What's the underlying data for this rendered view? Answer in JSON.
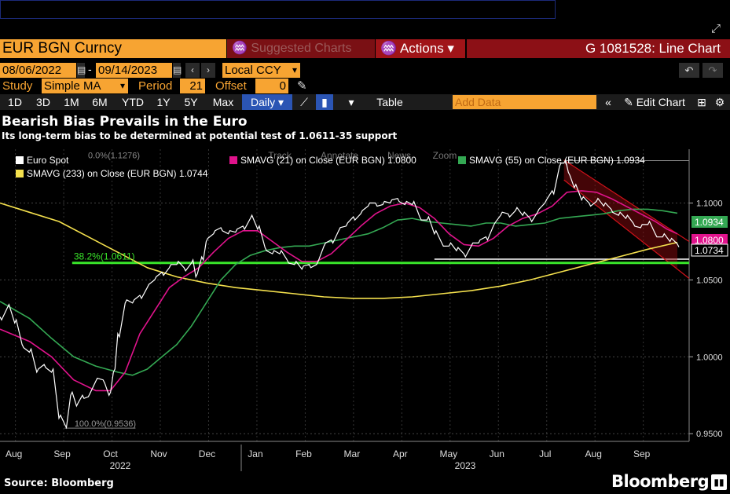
{
  "header": {
    "ticker": "EUR BGN Curncy",
    "suggested": "Suggested Charts",
    "actions": "Actions",
    "chart_id": "G 1081528: Line Chart"
  },
  "controls": {
    "start_date": "08/06/2022",
    "end_date": "09/14/2023",
    "currency": "Local CCY",
    "study_label": "Study",
    "study_value": "Simple MA",
    "period_label": "Period",
    "period_value": "21",
    "offset_label": "Offset",
    "offset_value": "0"
  },
  "toolbar": {
    "ranges": [
      "1D",
      "3D",
      "1M",
      "6M",
      "YTD",
      "1Y",
      "5Y",
      "Max"
    ],
    "frequency": "Daily",
    "table": "Table",
    "add_data": "Add Data",
    "edit_chart": "Edit Chart"
  },
  "headline": {
    "title": "Bearish Bias Prevails in the Euro",
    "subtitle": "Its long-term bias to be determined at potential test of 1.0611-35 support"
  },
  "footer": {
    "source": "Source: Bloomberg",
    "brand": "Bloomberg"
  },
  "chart_menu": [
    "Track",
    "Annotate",
    "News",
    "Zoom"
  ],
  "colors": {
    "spot": "#ffffff",
    "sma21": "#e0138c",
    "sma55": "#34a853",
    "sma233": "#f4e04d",
    "support": "#39e62a",
    "channel": "#d0121a",
    "ticker_bg": "#f7a432"
  },
  "chart_data": {
    "type": "line",
    "ylim": [
      0.945,
      1.135
    ],
    "yticks": [
      0.95,
      1.0,
      1.05,
      1.1
    ],
    "ytick_labels": [
      "0.9500",
      "1.0000",
      "1.0500",
      "1.1000"
    ],
    "x_months": [
      "Aug",
      "Sep",
      "Oct",
      "Nov",
      "Dec",
      "Jan",
      "Feb",
      "Mar",
      "Apr",
      "May",
      "Jun",
      "Jul",
      "Aug",
      "Sep"
    ],
    "x_years": [
      "2022",
      "2023"
    ],
    "legend": [
      {
        "label": "Euro Spot",
        "color": "#ffffff"
      },
      {
        "label": "SMAVG (21) on Close (EUR BGN) 1.0800",
        "color": "#e0138c"
      },
      {
        "label": "SMAVG (55) on Close (EUR BGN) 1.0934",
        "color": "#34a853"
      },
      {
        "label": "SMAVG (233) on Close (EUR BGN) 1.0744",
        "color": "#f4e04d"
      }
    ],
    "last_values": [
      {
        "label": "1.0934",
        "value": 1.0934,
        "color": "#34a853"
      },
      {
        "label": "1.0800",
        "value": 1.08,
        "color": "#e0138c"
      },
      {
        "label": "1.0734",
        "value": 1.0734,
        "color": "#ffffff"
      }
    ],
    "annotations": [
      {
        "label": "0.0%(1.1276)",
        "value": 1.1276
      },
      {
        "label": "38.2%(1.0611)",
        "value": 1.0611
      },
      {
        "label": "100.0%(0.9536)",
        "value": 0.9536
      }
    ],
    "spot_points": [
      [
        0.0,
        1.026
      ],
      [
        0.5,
        1.032
      ],
      [
        1.0,
        1.022
      ],
      [
        1.5,
        1.008
      ],
      [
        2.0,
        1.003
      ],
      [
        2.5,
        0.99
      ],
      [
        3.0,
        0.995
      ],
      [
        3.5,
        0.99
      ],
      [
        4.0,
        0.96
      ],
      [
        4.4,
        0.956
      ],
      [
        4.8,
        0.975
      ],
      [
        5.2,
        0.968
      ],
      [
        5.6,
        0.975
      ],
      [
        6.0,
        0.974
      ],
      [
        6.5,
        0.984
      ],
      [
        7.0,
        0.985
      ],
      [
        7.4,
        0.975
      ],
      [
        7.7,
        0.99
      ],
      [
        8.0,
        1.015
      ],
      [
        8.5,
        1.035
      ],
      [
        9.0,
        1.035
      ],
      [
        9.5,
        1.04
      ],
      [
        10.0,
        1.045
      ],
      [
        10.5,
        1.05
      ],
      [
        11.0,
        1.055
      ],
      [
        11.5,
        1.058
      ],
      [
        12.0,
        1.06
      ],
      [
        12.5,
        1.058
      ],
      [
        13.0,
        1.061
      ],
      [
        13.3,
        1.052
      ],
      [
        13.7,
        1.065
      ],
      [
        14.0,
        1.075
      ],
      [
        14.5,
        1.08
      ],
      [
        15.0,
        1.084
      ],
      [
        15.5,
        1.08
      ],
      [
        16.0,
        1.081
      ],
      [
        16.5,
        1.085
      ],
      [
        17.0,
        1.09
      ],
      [
        17.5,
        1.083
      ],
      [
        18.0,
        1.071
      ],
      [
        18.5,
        1.067
      ],
      [
        19.0,
        1.067
      ],
      [
        19.5,
        1.063
      ],
      [
        20.0,
        1.06
      ],
      [
        20.5,
        1.057
      ],
      [
        21.0,
        1.06
      ],
      [
        21.5,
        1.06
      ],
      [
        22.0,
        1.072
      ],
      [
        22.5,
        1.076
      ],
      [
        23.0,
        1.082
      ],
      [
        23.5,
        1.085
      ],
      [
        24.0,
        1.091
      ],
      [
        24.5,
        1.093
      ],
      [
        25.0,
        1.098
      ],
      [
        25.5,
        1.1
      ],
      [
        26.0,
        1.099
      ],
      [
        26.5,
        1.1
      ],
      [
        27.0,
        1.103
      ],
      [
        27.5,
        1.099
      ],
      [
        28.0,
        1.099
      ],
      [
        28.5,
        1.091
      ],
      [
        29.0,
        1.089
      ],
      [
        29.5,
        1.08
      ],
      [
        30.0,
        1.074
      ],
      [
        30.5,
        1.072
      ],
      [
        31.0,
        1.069
      ],
      [
        31.5,
        1.067
      ],
      [
        32.0,
        1.072
      ],
      [
        32.5,
        1.074
      ],
      [
        33.0,
        1.078
      ],
      [
        33.5,
        1.085
      ],
      [
        34.0,
        1.092
      ],
      [
        34.5,
        1.093
      ],
      [
        35.0,
        1.095
      ],
      [
        35.5,
        1.092
      ],
      [
        36.0,
        1.09
      ],
      [
        36.5,
        1.094
      ],
      [
        37.0,
        1.1
      ],
      [
        37.5,
        1.108
      ],
      [
        38.0,
        1.124
      ],
      [
        38.3,
        1.126
      ],
      [
        38.6,
        1.12
      ],
      [
        39.0,
        1.11
      ],
      [
        39.5,
        1.102
      ],
      [
        40.0,
        1.1
      ],
      [
        40.5,
        1.101
      ],
      [
        41.0,
        1.098
      ],
      [
        41.5,
        1.096
      ],
      [
        42.0,
        1.092
      ],
      [
        42.5,
        1.09
      ],
      [
        43.0,
        1.087
      ],
      [
        43.5,
        1.084
      ],
      [
        44.0,
        1.086
      ],
      [
        44.5,
        1.08
      ],
      [
        45.0,
        1.078
      ],
      [
        45.5,
        1.075
      ],
      [
        46.0,
        1.0734
      ]
    ],
    "sma21_points": [
      [
        0.0,
        1.018
      ],
      [
        2.0,
        1.01
      ],
      [
        3.5,
        1.0
      ],
      [
        5.0,
        0.985
      ],
      [
        6.5,
        0.978
      ],
      [
        7.5,
        0.978
      ],
      [
        8.5,
        0.99
      ],
      [
        9.5,
        1.015
      ],
      [
        10.5,
        1.03
      ],
      [
        11.5,
        1.045
      ],
      [
        12.5,
        1.052
      ],
      [
        13.5,
        1.058
      ],
      [
        14.5,
        1.068
      ],
      [
        15.5,
        1.077
      ],
      [
        16.5,
        1.082
      ],
      [
        17.5,
        1.082
      ],
      [
        18.5,
        1.075
      ],
      [
        19.5,
        1.068
      ],
      [
        20.5,
        1.062
      ],
      [
        21.5,
        1.062
      ],
      [
        22.5,
        1.067
      ],
      [
        23.5,
        1.076
      ],
      [
        24.5,
        1.085
      ],
      [
        25.5,
        1.093
      ],
      [
        26.5,
        1.098
      ],
      [
        27.5,
        1.1
      ],
      [
        28.5,
        1.097
      ],
      [
        29.5,
        1.09
      ],
      [
        30.5,
        1.08
      ],
      [
        31.5,
        1.073
      ],
      [
        32.5,
        1.072
      ],
      [
        33.5,
        1.077
      ],
      [
        34.5,
        1.085
      ],
      [
        35.5,
        1.09
      ],
      [
        36.5,
        1.093
      ],
      [
        37.5,
        1.098
      ],
      [
        38.5,
        1.107
      ],
      [
        39.5,
        1.108
      ],
      [
        40.5,
        1.107
      ],
      [
        41.5,
        1.103
      ],
      [
        42.5,
        1.098
      ],
      [
        43.5,
        1.093
      ],
      [
        44.5,
        1.088
      ],
      [
        45.3,
        1.083
      ],
      [
        46.0,
        1.08
      ]
    ],
    "sma55_points": [
      [
        0.0,
        1.036
      ],
      [
        2.0,
        1.025
      ],
      [
        3.5,
        1.012
      ],
      [
        5.0,
        1.0
      ],
      [
        6.5,
        0.994
      ],
      [
        8.0,
        0.99
      ],
      [
        9.0,
        0.988
      ],
      [
        10.0,
        0.992
      ],
      [
        11.0,
        1.0
      ],
      [
        12.0,
        1.008
      ],
      [
        13.0,
        1.02
      ],
      [
        14.0,
        1.035
      ],
      [
        15.0,
        1.05
      ],
      [
        16.0,
        1.06
      ],
      [
        17.0,
        1.066
      ],
      [
        18.0,
        1.069
      ],
      [
        19.0,
        1.071
      ],
      [
        20.0,
        1.072
      ],
      [
        21.0,
        1.072
      ],
      [
        22.0,
        1.074
      ],
      [
        23.0,
        1.076
      ],
      [
        24.0,
        1.078
      ],
      [
        25.0,
        1.08
      ],
      [
        26.0,
        1.084
      ],
      [
        27.0,
        1.089
      ],
      [
        28.0,
        1.09
      ],
      [
        29.0,
        1.088
      ],
      [
        30.0,
        1.087
      ],
      [
        31.0,
        1.086
      ],
      [
        32.0,
        1.085
      ],
      [
        33.0,
        1.087
      ],
      [
        34.0,
        1.087
      ],
      [
        35.0,
        1.085
      ],
      [
        36.0,
        1.086
      ],
      [
        37.0,
        1.087
      ],
      [
        38.0,
        1.09
      ],
      [
        39.0,
        1.091
      ],
      [
        40.0,
        1.092
      ],
      [
        41.0,
        1.093
      ],
      [
        42.0,
        1.095
      ],
      [
        43.0,
        1.096
      ],
      [
        44.0,
        1.096
      ],
      [
        45.0,
        1.095
      ],
      [
        46.0,
        1.0934
      ]
    ],
    "sma233_points": [
      [
        0.0,
        1.1
      ],
      [
        2.0,
        1.094
      ],
      [
        4.0,
        1.088
      ],
      [
        6.0,
        1.078
      ],
      [
        8.0,
        1.068
      ],
      [
        10.0,
        1.058
      ],
      [
        12.0,
        1.052
      ],
      [
        14.0,
        1.048
      ],
      [
        16.0,
        1.045
      ],
      [
        18.0,
        1.043
      ],
      [
        20.0,
        1.041
      ],
      [
        22.0,
        1.039
      ],
      [
        24.0,
        1.038
      ],
      [
        26.0,
        1.038
      ],
      [
        28.0,
        1.039
      ],
      [
        30.0,
        1.041
      ],
      [
        32.0,
        1.043
      ],
      [
        34.0,
        1.046
      ],
      [
        36.0,
        1.05
      ],
      [
        38.0,
        1.055
      ],
      [
        40.0,
        1.06
      ],
      [
        42.0,
        1.065
      ],
      [
        44.0,
        1.07
      ],
      [
        46.0,
        1.0744
      ]
    ],
    "support_level": 1.0611,
    "channel_upper": [
      [
        38.3,
        1.128
      ],
      [
        46.0,
        1.08
      ]
    ],
    "channel_lower": [
      [
        38.3,
        1.115
      ],
      [
        46.0,
        1.057
      ]
    ],
    "range_line": 1.0635
  }
}
